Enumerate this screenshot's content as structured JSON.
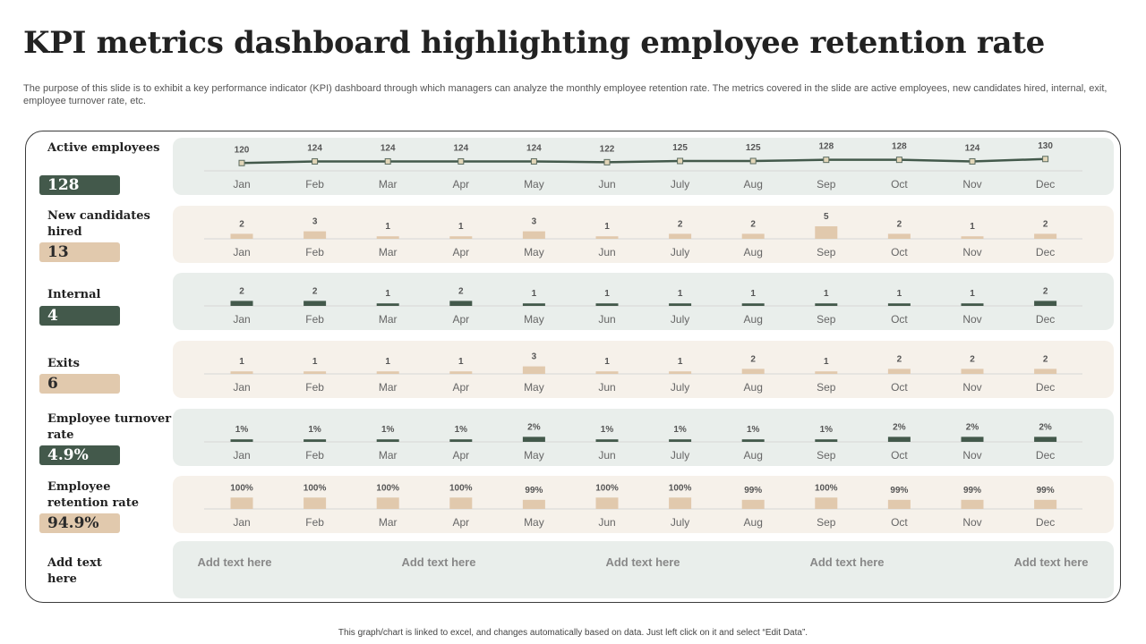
{
  "slide": {
    "title": "KPI metrics dashboard highlighting employee retention rate",
    "description": "The purpose of this slide is to exhibit a key performance indicator (KPI) dashboard through which managers can analyze the monthly employee retention rate. The metrics covered in the slide are active employees, new candidates hired, internal, exit,  employee turnover rate,  etc.",
    "footer": "This graph/chart is linked to excel, and changes automatically based on data. Just left click on it and select “Edit Data”."
  },
  "colors": {
    "dark_green": "#43594b",
    "beige": "#e1c9ad",
    "panel_green": "#e9eeeb",
    "panel_beige": "#f6f1ea"
  },
  "kpis": [
    {
      "label": "Active employees",
      "value": "128"
    },
    {
      "label": "New candidates hired",
      "value": "13"
    },
    {
      "label": "Internal",
      "value": "4"
    },
    {
      "label": "Exits",
      "value": "6"
    },
    {
      "label": "Employee turnover rate",
      "value": "4.9%"
    },
    {
      "label": "Employee retention rate",
      "value": "94.9%"
    }
  ],
  "add_row": {
    "label": "Add text here",
    "items": [
      "Add text here",
      "Add text here",
      "Add text here",
      "Add text here",
      "Add text here"
    ]
  },
  "chart_data": [
    {
      "type": "line",
      "name": "active-employees",
      "color": "#43594b",
      "categories": [
        "Jan",
        "Feb",
        "Mar",
        "Apr",
        "May",
        "Jun",
        "July",
        "Aug",
        "Sep",
        "Oct",
        "Nov",
        "Dec"
      ],
      "values": [
        120,
        124,
        124,
        124,
        124,
        122,
        125,
        125,
        128,
        128,
        124,
        130
      ],
      "labels": [
        "120",
        "124",
        "124",
        "124",
        "124",
        "122",
        "125",
        "125",
        "128",
        "128",
        "124",
        "130"
      ],
      "ylim": [
        0,
        130
      ]
    },
    {
      "type": "bar",
      "name": "new-candidates-hired",
      "color": "#e1c9ad",
      "categories": [
        "Jan",
        "Feb",
        "Mar",
        "Apr",
        "May",
        "Jun",
        "July",
        "Aug",
        "Sep",
        "Oct",
        "Nov",
        "Dec"
      ],
      "values": [
        2,
        3,
        1,
        1,
        3,
        1,
        2,
        2,
        5,
        2,
        1,
        2
      ],
      "labels": [
        "2",
        "3",
        "1",
        "1",
        "3",
        "1",
        "2",
        "2",
        "5",
        "2",
        "1",
        "2"
      ],
      "ylim": [
        0,
        5
      ]
    },
    {
      "type": "bar",
      "name": "internal",
      "color": "#43594b",
      "categories": [
        "Jan",
        "Feb",
        "Mar",
        "Apr",
        "May",
        "Jun",
        "July",
        "Aug",
        "Sep",
        "Oct",
        "Nov",
        "Dec"
      ],
      "values": [
        2,
        2,
        1,
        2,
        1,
        1,
        1,
        1,
        1,
        1,
        1,
        2
      ],
      "labels": [
        "2",
        "2",
        "1",
        "2",
        "1",
        "1",
        "1",
        "1",
        "1",
        "1",
        "1",
        "2"
      ],
      "ylim": [
        0,
        5
      ]
    },
    {
      "type": "bar",
      "name": "exits",
      "color": "#e1c9ad",
      "categories": [
        "Jan",
        "Feb",
        "Mar",
        "Apr",
        "May",
        "Jun",
        "July",
        "Aug",
        "Sep",
        "Oct",
        "Nov",
        "Dec"
      ],
      "values": [
        1,
        1,
        1,
        1,
        3,
        1,
        1,
        2,
        1,
        2,
        2,
        2
      ],
      "labels": [
        "1",
        "1",
        "1",
        "1",
        "3",
        "1",
        "1",
        "2",
        "1",
        "2",
        "2",
        "2"
      ],
      "ylim": [
        0,
        5
      ]
    },
    {
      "type": "bar",
      "name": "employee-turnover-rate",
      "color": "#43594b",
      "categories": [
        "Jan",
        "Feb",
        "Mar",
        "Apr",
        "May",
        "Jun",
        "July",
        "Aug",
        "Sep",
        "Oct",
        "Nov",
        "Dec"
      ],
      "values": [
        1,
        1,
        1,
        1,
        2,
        1,
        1,
        1,
        1,
        2,
        2,
        2
      ],
      "labels": [
        "1%",
        "1%",
        "1%",
        "1%",
        "2%",
        "1%",
        "1%",
        "1%",
        "1%",
        "2%",
        "2%",
        "2%"
      ],
      "ylim": [
        0,
        5
      ]
    },
    {
      "type": "bar",
      "name": "employee-retention-rate",
      "color": "#e1c9ad",
      "categories": [
        "Jan",
        "Feb",
        "Mar",
        "Apr",
        "May",
        "Jun",
        "July",
        "Aug",
        "Sep",
        "Oct",
        "Nov",
        "Dec"
      ],
      "values": [
        100,
        100,
        100,
        100,
        99,
        100,
        100,
        99,
        100,
        99,
        99,
        99
      ],
      "labels": [
        "100%",
        "100%",
        "100%",
        "100%",
        "99%",
        "100%",
        "100%",
        "99%",
        "100%",
        "99%",
        "99%",
        "99%"
      ],
      "ylim": [
        95,
        100.5
      ]
    }
  ]
}
